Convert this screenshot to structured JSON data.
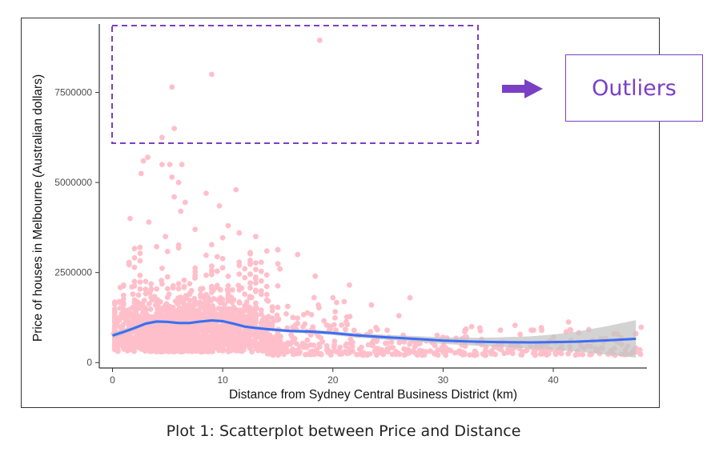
{
  "caption": "Plot 1: Scatterplot between Price and Distance",
  "annotation": {
    "label": "Outliers",
    "color": "#7b3fc4"
  },
  "colors": {
    "points": "#ffbfca",
    "smooth_line": "#3d6cf5",
    "ribbon": "#c4c4c4",
    "axis": "#333333",
    "annotation": "#7b3fc4"
  },
  "chart_data": {
    "type": "scatter",
    "title": "",
    "xlabel": "Distance from Sydney Central Business District (km)",
    "ylabel": "Price of houses in Melbourne (Australian dollars)",
    "xlim": [
      -1.2,
      48.5
    ],
    "ylim": [
      -150000,
      9400000
    ],
    "x_ticks": [
      0,
      10,
      20,
      30,
      40
    ],
    "y_ticks": [
      0,
      2500000,
      5000000,
      7500000
    ],
    "y_tick_labels": [
      "0",
      "2500000",
      "5000000",
      "7500000"
    ],
    "grid": false,
    "outliers": [
      {
        "x": 18.8,
        "y": 8950000
      },
      {
        "x": 9.0,
        "y": 8000000
      },
      {
        "x": 5.4,
        "y": 7650000
      },
      {
        "x": 5.6,
        "y": 6500000
      },
      {
        "x": 4.5,
        "y": 6250000
      }
    ],
    "points": [
      {
        "x": 3.2,
        "y": 5700000
      },
      {
        "x": 2.8,
        "y": 5600000
      },
      {
        "x": 4.5,
        "y": 5500000
      },
      {
        "x": 5.2,
        "y": 5500000
      },
      {
        "x": 6.3,
        "y": 5500000
      },
      {
        "x": 2.6,
        "y": 5250000
      },
      {
        "x": 6.0,
        "y": 5000000
      },
      {
        "x": 5.4,
        "y": 5150000
      },
      {
        "x": 11.2,
        "y": 4800000
      },
      {
        "x": 8.5,
        "y": 4700000
      },
      {
        "x": 5.6,
        "y": 4600000
      },
      {
        "x": 6.6,
        "y": 4450000
      },
      {
        "x": 9.7,
        "y": 4350000
      },
      {
        "x": 1.6,
        "y": 4000000
      },
      {
        "x": 6.2,
        "y": 4200000
      },
      {
        "x": 3.3,
        "y": 3900000
      },
      {
        "x": 7.5,
        "y": 3700000
      },
      {
        "x": 4.8,
        "y": 3500000
      },
      {
        "x": 10.5,
        "y": 3800000
      },
      {
        "x": 11.5,
        "y": 3600000
      },
      {
        "x": 13.0,
        "y": 3500000
      },
      {
        "x": 16.8,
        "y": 3000000
      },
      {
        "x": 14.0,
        "y": 3100000
      },
      {
        "x": 2.5,
        "y": 3200000
      },
      {
        "x": 15.2,
        "y": 2600000
      },
      {
        "x": 18.4,
        "y": 2400000
      },
      {
        "x": 21.5,
        "y": 2150000
      },
      {
        "x": 20.0,
        "y": 1800000
      },
      {
        "x": 27.0,
        "y": 1800000
      },
      {
        "x": 23.5,
        "y": 1600000
      },
      {
        "x": 26.0,
        "y": 1300000
      },
      {
        "x": 32.0,
        "y": 900000
      },
      {
        "x": 35.2,
        "y": 900000
      },
      {
        "x": 38.0,
        "y": 900000
      },
      {
        "x": 45.5,
        "y": 800000
      },
      {
        "x": 47.5,
        "y": 800000
      },
      {
        "x": 47.5,
        "y": 400000
      },
      {
        "x": 33.5,
        "y": 500000
      },
      {
        "x": 30.0,
        "y": 700000
      },
      {
        "x": 41.5,
        "y": 450000
      },
      {
        "x": 36.2,
        "y": 500000
      },
      {
        "x": 28.5,
        "y": 600000
      },
      {
        "x": 0.2,
        "y": 400000
      },
      {
        "x": 0.5,
        "y": 600000
      },
      {
        "x": 0.1,
        "y": 800000
      }
    ],
    "smooth_line": {
      "x": [
        0,
        1,
        2,
        3,
        4,
        5,
        6,
        7,
        8,
        9,
        10,
        11,
        12,
        13,
        14,
        16,
        18,
        20,
        22,
        25,
        28,
        30,
        33,
        35,
        38,
        40,
        42,
        45,
        47.5
      ],
      "y": [
        750000,
        850000,
        960000,
        1080000,
        1140000,
        1130000,
        1100000,
        1100000,
        1140000,
        1170000,
        1150000,
        1080000,
        1000000,
        960000,
        930000,
        880000,
        860000,
        820000,
        760000,
        700000,
        650000,
        610000,
        580000,
        570000,
        560000,
        570000,
        580000,
        620000,
        660000
      ],
      "band": [
        80000,
        70000,
        60000,
        55000,
        50000,
        45000,
        45000,
        45000,
        45000,
        45000,
        45000,
        45000,
        45000,
        45000,
        45000,
        45000,
        50000,
        55000,
        60000,
        70000,
        80000,
        90000,
        110000,
        130000,
        170000,
        210000,
        270000,
        400000,
        520000
      ]
    }
  }
}
